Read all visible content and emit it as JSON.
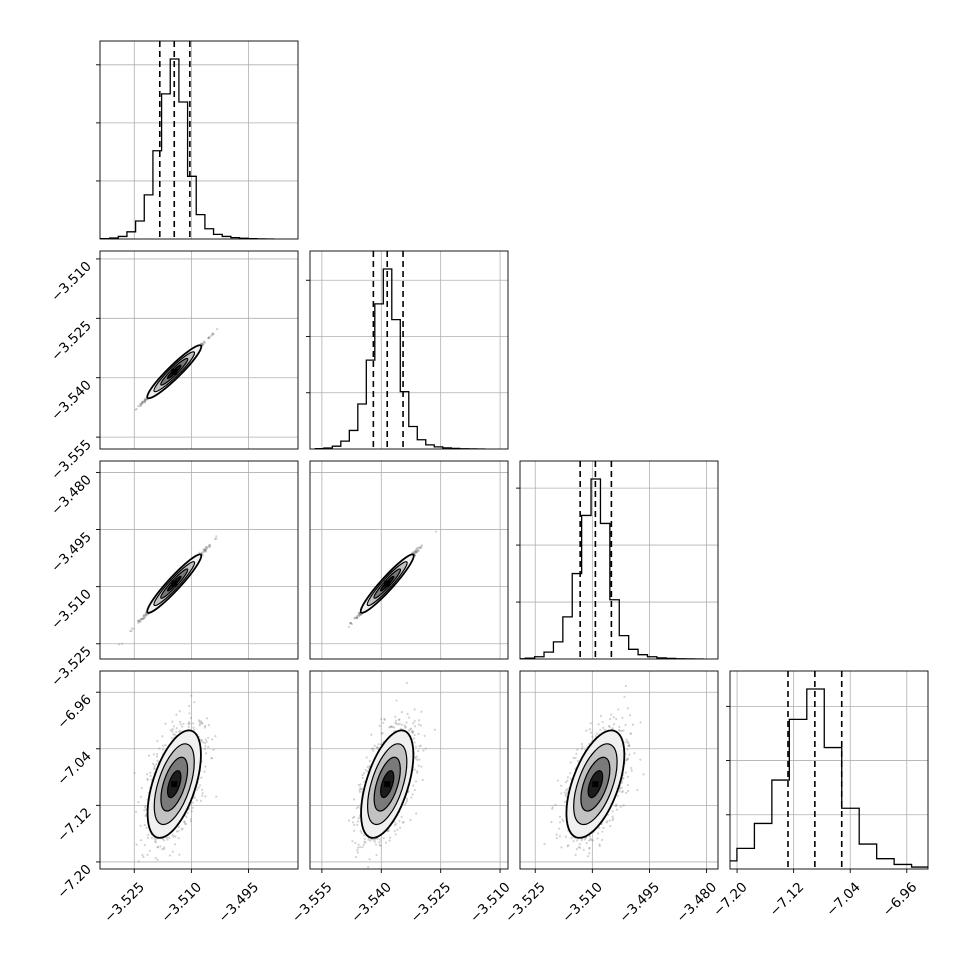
{
  "chart_data": {
    "type": "corner",
    "title": "",
    "parameters": [
      "",
      "",
      "",
      ""
    ],
    "grid": true,
    "quantiles": [
      0.16,
      0.5,
      0.84
    ],
    "colors": {
      "line": "#000000",
      "grid": "#b0b0b0",
      "scatter": "#7f7f7f",
      "contour_fill_1": "#f0f0f0",
      "contour_fill_2": "#c2c2c2",
      "contour_fill_3": "#7a7a7a",
      "contour_fill_4": "#1c1c1c"
    },
    "params": [
      {
        "range": [
          -3.534,
          -3.482
        ],
        "mean": -3.5145,
        "sd": 0.0035,
        "quantile_values": [
          -3.5183,
          -3.5145,
          -3.5104
        ],
        "ticks": [
          -3.525,
          -3.51,
          -3.495
        ],
        "tick_labels": [
          "−3.525",
          "−3.510",
          "−3.495"
        ]
      },
      {
        "range": [
          -3.558,
          -3.508
        ],
        "mean": -3.5385,
        "sd": 0.0033,
        "quantile_values": [
          -3.542,
          -3.5385,
          -3.5345
        ],
        "ticks": [
          -3.555,
          -3.54,
          -3.525,
          -3.51
        ],
        "tick_labels": [
          "−3.555",
          "−3.540",
          "−3.525",
          "−3.510"
        ]
      },
      {
        "range": [
          -3.529,
          -3.477
        ],
        "mean": -3.5092,
        "sd": 0.0038,
        "quantile_values": [
          -3.5132,
          -3.5092,
          -3.505
        ],
        "ticks": [
          -3.525,
          -3.51,
          -3.495,
          -3.48
        ],
        "tick_labels": [
          "−3.525",
          "−3.510",
          "−3.495",
          "−3.480"
        ]
      },
      {
        "range": [
          -7.21,
          -6.93
        ],
        "mean": -7.09,
        "sd": 0.038,
        "quantile_values": [
          -7.128,
          -7.09,
          -7.052
        ],
        "ticks": [
          -7.2,
          -7.12,
          -7.04,
          -6.96
        ],
        "tick_labels": [
          "−7.20",
          "−7.12",
          "−7.04",
          "−6.96"
        ]
      }
    ],
    "histograms": [
      {
        "param": 0,
        "bins": 20,
        "counts": [
          3,
          8,
          22,
          62,
          155,
          380,
          760,
          1250,
          1550,
          1180,
          540,
          210,
          88,
          40,
          22,
          12,
          6,
          3,
          1,
          0
        ]
      },
      {
        "param": 1,
        "bins": 20,
        "counts": [
          3,
          9,
          25,
          70,
          165,
          400,
          790,
          1290,
          1600,
          1150,
          510,
          200,
          82,
          37,
          19,
          10,
          5,
          2,
          1,
          0
        ]
      },
      {
        "param": 2,
        "bins": 20,
        "counts": [
          2,
          7,
          20,
          60,
          150,
          370,
          750,
          1260,
          1580,
          1190,
          520,
          205,
          85,
          38,
          20,
          10,
          5,
          2,
          1,
          0
        ]
      },
      {
        "param": 3,
        "bins": 20,
        "counts": [
          3,
          8,
          28,
          75,
          190,
          420,
          820,
          1380,
          1660,
          1120,
          560,
          230,
          95,
          42,
          18,
          8,
          4,
          1,
          0,
          0
        ]
      }
    ],
    "correlations": [
      {
        "x": 0,
        "y": 1,
        "r": 0.998
      },
      {
        "x": 0,
        "y": 2,
        "r": 0.996
      },
      {
        "x": 1,
        "y": 2,
        "r": 0.996
      },
      {
        "x": 0,
        "y": 3,
        "r": 0.55
      },
      {
        "x": 1,
        "y": 3,
        "r": 0.55
      },
      {
        "x": 2,
        "y": 3,
        "r": 0.55
      }
    ],
    "contour_sigma_levels": [
      0.5,
      1.0,
      1.5,
      2.0
    ]
  }
}
